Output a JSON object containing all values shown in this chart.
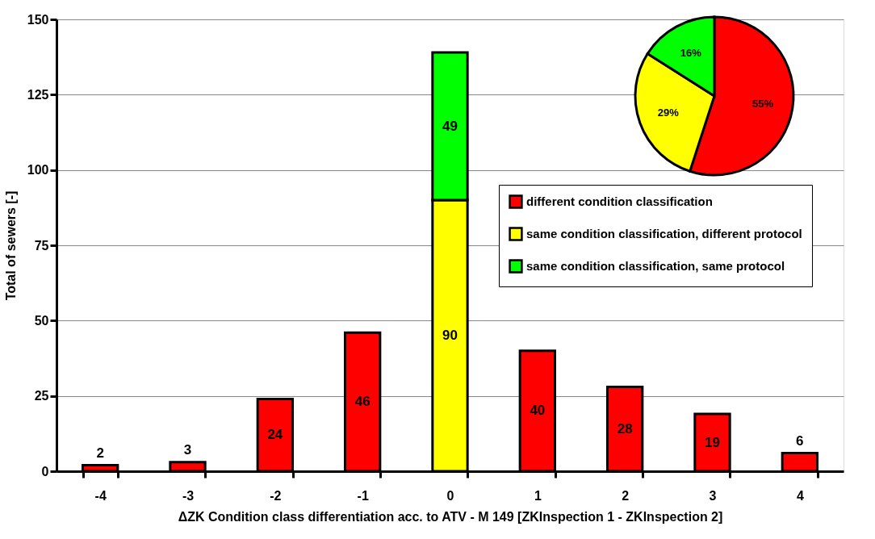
{
  "chart_data": [
    {
      "type": "bar",
      "stacked": true,
      "xlabel": "ΔZK Condition class differentiation acc. to ATV - M 149 [ZKInspection 1 - ZKInspection 2]",
      "ylabel": "Total of sewers [-]",
      "categories": [
        "-4",
        "-3",
        "-2",
        "-1",
        "0",
        "1",
        "2",
        "3",
        "4"
      ],
      "series": [
        {
          "name": "different condition classification",
          "color": "#ff0000",
          "values": [
            2,
            3,
            24,
            46,
            null,
            40,
            28,
            19,
            6
          ]
        },
        {
          "name": "same condition classification, different protocol",
          "color": "#ffff00",
          "values": [
            null,
            null,
            null,
            null,
            90,
            null,
            null,
            null,
            null
          ]
        },
        {
          "name": "same condition classification, same protocol",
          "color": "#00ff00",
          "values": [
            null,
            null,
            null,
            null,
            49,
            null,
            null,
            null,
            null
          ]
        }
      ],
      "ylim": [
        0,
        150
      ],
      "yticks": [
        0,
        25,
        50,
        75,
        100,
        125,
        150
      ],
      "grid": "y",
      "legend": "top right",
      "data_labels": true
    },
    {
      "type": "pie",
      "categories": [
        null,
        null,
        null
      ],
      "values": [
        55,
        29,
        16
      ],
      "colors": [
        "#ff0000",
        "#ffff00",
        "#00ff00"
      ],
      "value_labels": [
        "55%",
        "29%",
        "16%"
      ]
    }
  ]
}
